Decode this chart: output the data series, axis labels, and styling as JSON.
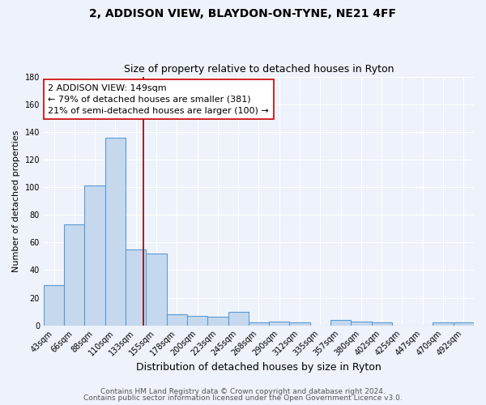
{
  "title1": "2, ADDISON VIEW, BLAYDON-ON-TYNE, NE21 4FF",
  "title2": "Size of property relative to detached houses in Ryton",
  "xlabel": "Distribution of detached houses by size in Ryton",
  "ylabel": "Number of detached properties",
  "categories": [
    "43sqm",
    "66sqm",
    "88sqm",
    "110sqm",
    "133sqm",
    "155sqm",
    "178sqm",
    "200sqm",
    "223sqm",
    "245sqm",
    "268sqm",
    "290sqm",
    "312sqm",
    "335sqm",
    "357sqm",
    "380sqm",
    "402sqm",
    "425sqm",
    "447sqm",
    "470sqm",
    "492sqm"
  ],
  "values": [
    29,
    73,
    101,
    136,
    55,
    52,
    8,
    7,
    6,
    10,
    2,
    3,
    2,
    0,
    4,
    3,
    2,
    0,
    0,
    2,
    2
  ],
  "bar_color": "#c5d8ed",
  "bar_edge_color": "#5b9bd5",
  "vline_x": 4.35,
  "vline_color": "#8b0000",
  "ylim": [
    0,
    180
  ],
  "yticks": [
    0,
    20,
    40,
    60,
    80,
    100,
    120,
    140,
    160,
    180
  ],
  "annotation_line1": "2 ADDISON VIEW: 149sqm",
  "annotation_line2": "← 79% of detached houses are smaller (381)",
  "annotation_line3": "21% of semi-detached houses are larger (100) →",
  "annotation_box_color": "#ffffff",
  "annotation_box_edge_color": "#cc0000",
  "footer1": "Contains HM Land Registry data © Crown copyright and database right 2024.",
  "footer2": "Contains public sector information licensed under the Open Government Licence v3.0.",
  "bg_color": "#eef2fa",
  "grid_color": "#ffffff",
  "title1_fontsize": 10,
  "title2_fontsize": 9,
  "xlabel_fontsize": 9,
  "ylabel_fontsize": 8,
  "tick_fontsize": 7,
  "annotation_fontsize": 8,
  "footer_fontsize": 6.5
}
